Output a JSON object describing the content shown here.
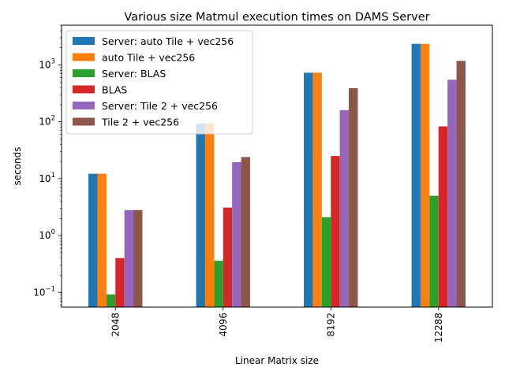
{
  "chart_data": {
    "type": "bar",
    "title": "Various size Matmul execution times on DAMS Server",
    "xlabel": "Linear Matrix size",
    "ylabel": "seconds",
    "yscale": "log",
    "ylim": [
      0.055,
      5000
    ],
    "grid": false,
    "legend_position": "top-left",
    "categories": [
      "2048",
      "4096",
      "8192",
      "12288"
    ],
    "y_ticks": [
      {
        "value": 0.1,
        "base": "10",
        "exp": "−1"
      },
      {
        "value": 1,
        "base": "10",
        "exp": "0"
      },
      {
        "value": 10,
        "base": "10",
        "exp": "1"
      },
      {
        "value": 100,
        "base": "10",
        "exp": "2"
      },
      {
        "value": 1000,
        "base": "10",
        "exp": "3"
      }
    ],
    "series": [
      {
        "name": "Server: auto Tile + vec256",
        "color": "#1f77b4",
        "values": [
          12.2,
          93,
          730,
          2350
        ]
      },
      {
        "name": "auto Tile + vec256",
        "color": "#ff7f0e",
        "values": [
          12.2,
          93,
          730,
          2350
        ]
      },
      {
        "name": "Server: BLAS",
        "color": "#2ca02c",
        "values": [
          0.092,
          0.36,
          2.1,
          5.0
        ]
      },
      {
        "name": "BLAS",
        "color": "#d62728",
        "values": [
          0.4,
          3.1,
          25,
          83
        ]
      },
      {
        "name": "Server: Tile 2 + vec256",
        "color": "#9467bd",
        "values": [
          2.8,
          19.5,
          160,
          550
        ]
      },
      {
        "name": "Tile 2 + vec256",
        "color": "#8c564b",
        "values": [
          2.8,
          24,
          390,
          1180
        ]
      }
    ]
  }
}
